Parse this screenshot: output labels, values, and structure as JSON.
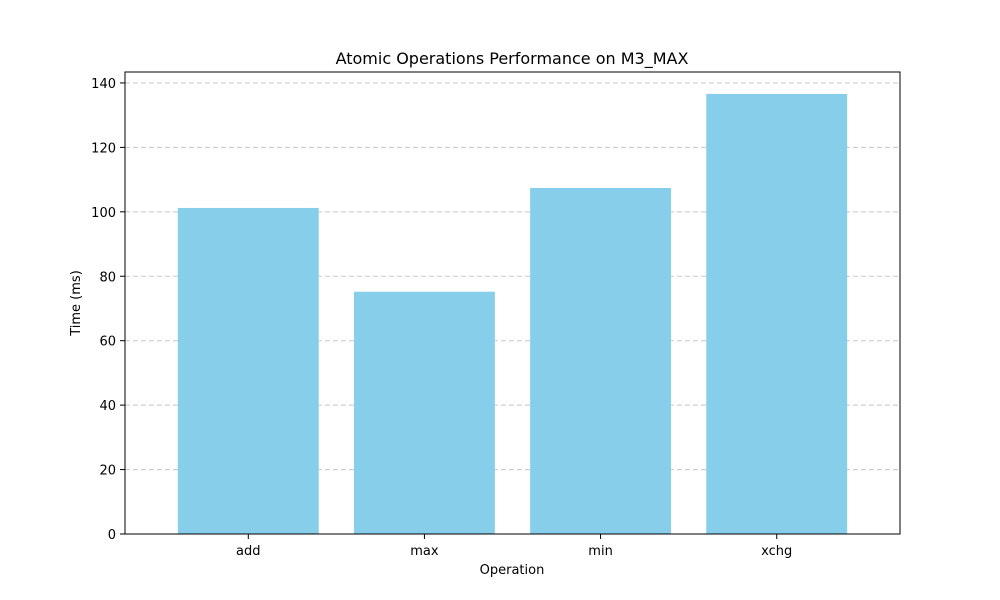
{
  "chart_data": {
    "type": "bar",
    "title": "Atomic Operations Performance on M3_MAX",
    "xlabel": "Operation",
    "ylabel": "Time (ms)",
    "categories": [
      "add",
      "max",
      "min",
      "xchg"
    ],
    "values": [
      101.2,
      75.2,
      107.4,
      136.6
    ],
    "ylim": [
      0,
      143.4
    ],
    "yticks": [
      0,
      20,
      40,
      60,
      80,
      100,
      120,
      140
    ],
    "grid": "y-dashed",
    "legend": "none",
    "colors": {
      "bar": "#87ceeb",
      "grid": "#c8c8c8",
      "axis": "#000000"
    }
  }
}
